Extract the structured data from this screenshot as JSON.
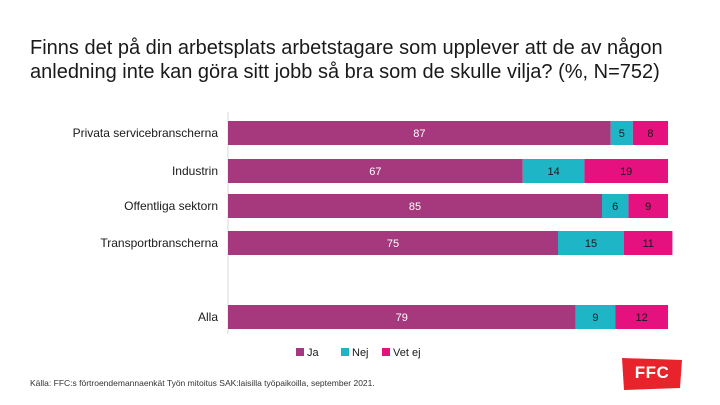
{
  "title_lines": [
    "Finns det på din arbetsplats arbetstagare som upplever att de av någon",
    "anledning inte kan göra sitt jobb så bra som de skulle vilja? (%, N=752)"
  ],
  "source": "Källa: FFC:s förtroendemannaenkät Työn mitoitus SAK:laisilla työpaikoilla, september 2021.",
  "logo": {
    "text": "FFC",
    "color": "#e8232b"
  },
  "chart_data": {
    "type": "bar",
    "orientation": "horizontal",
    "stacked": true,
    "title": "Finns det på din arbetsplats arbetstagare som upplever att de av någon anledning inte kan göra sitt jobb så bra som de skulle vilja? (%, N=752)",
    "categories": [
      "Privata servicebranscherna",
      "Industrin",
      "Offentliga sektorn",
      "Transportbranscherna",
      "Alla"
    ],
    "series": [
      {
        "name": "Ja",
        "color": "#a6397e",
        "values": [
          87,
          67,
          85,
          75,
          79
        ]
      },
      {
        "name": "Nej",
        "color": "#1eb6c7",
        "values": [
          5,
          14,
          6,
          15,
          9
        ]
      },
      {
        "name": "Vet ej",
        "color": "#e5117e",
        "values": [
          8,
          19,
          9,
          11,
          12
        ]
      }
    ],
    "xlim": [
      0,
      100
    ],
    "grid": false,
    "legend_position": "bottom"
  }
}
